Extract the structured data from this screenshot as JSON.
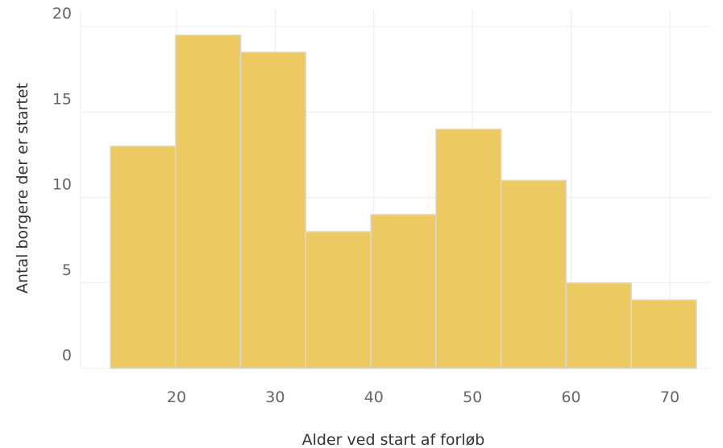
{
  "chart_data": {
    "type": "bar",
    "title": "",
    "xlabel": "Alder ved start af forløb",
    "ylabel": "Antal borgere der er startet",
    "xlim": [
      13.3,
      72.7
    ],
    "ylim": [
      0,
      20
    ],
    "xticks": [
      20,
      30,
      40,
      50,
      60,
      70
    ],
    "yticks": [
      0,
      5,
      10,
      15,
      20
    ],
    "grid": true,
    "bins": [
      {
        "start": 13.3,
        "end": 19.9,
        "value": 13
      },
      {
        "start": 19.9,
        "end": 26.5,
        "value": 19.5
      },
      {
        "start": 26.5,
        "end": 33.1,
        "value": 18.5
      },
      {
        "start": 33.1,
        "end": 39.7,
        "value": 8
      },
      {
        "start": 39.7,
        "end": 46.3,
        "value": 9
      },
      {
        "start": 46.3,
        "end": 52.9,
        "value": 14
      },
      {
        "start": 52.9,
        "end": 59.5,
        "value": 11
      },
      {
        "start": 59.5,
        "end": 66.1,
        "value": 5
      },
      {
        "start": 66.1,
        "end": 72.7,
        "value": 4
      }
    ],
    "colors": {
      "bar": "#edc962"
    }
  }
}
